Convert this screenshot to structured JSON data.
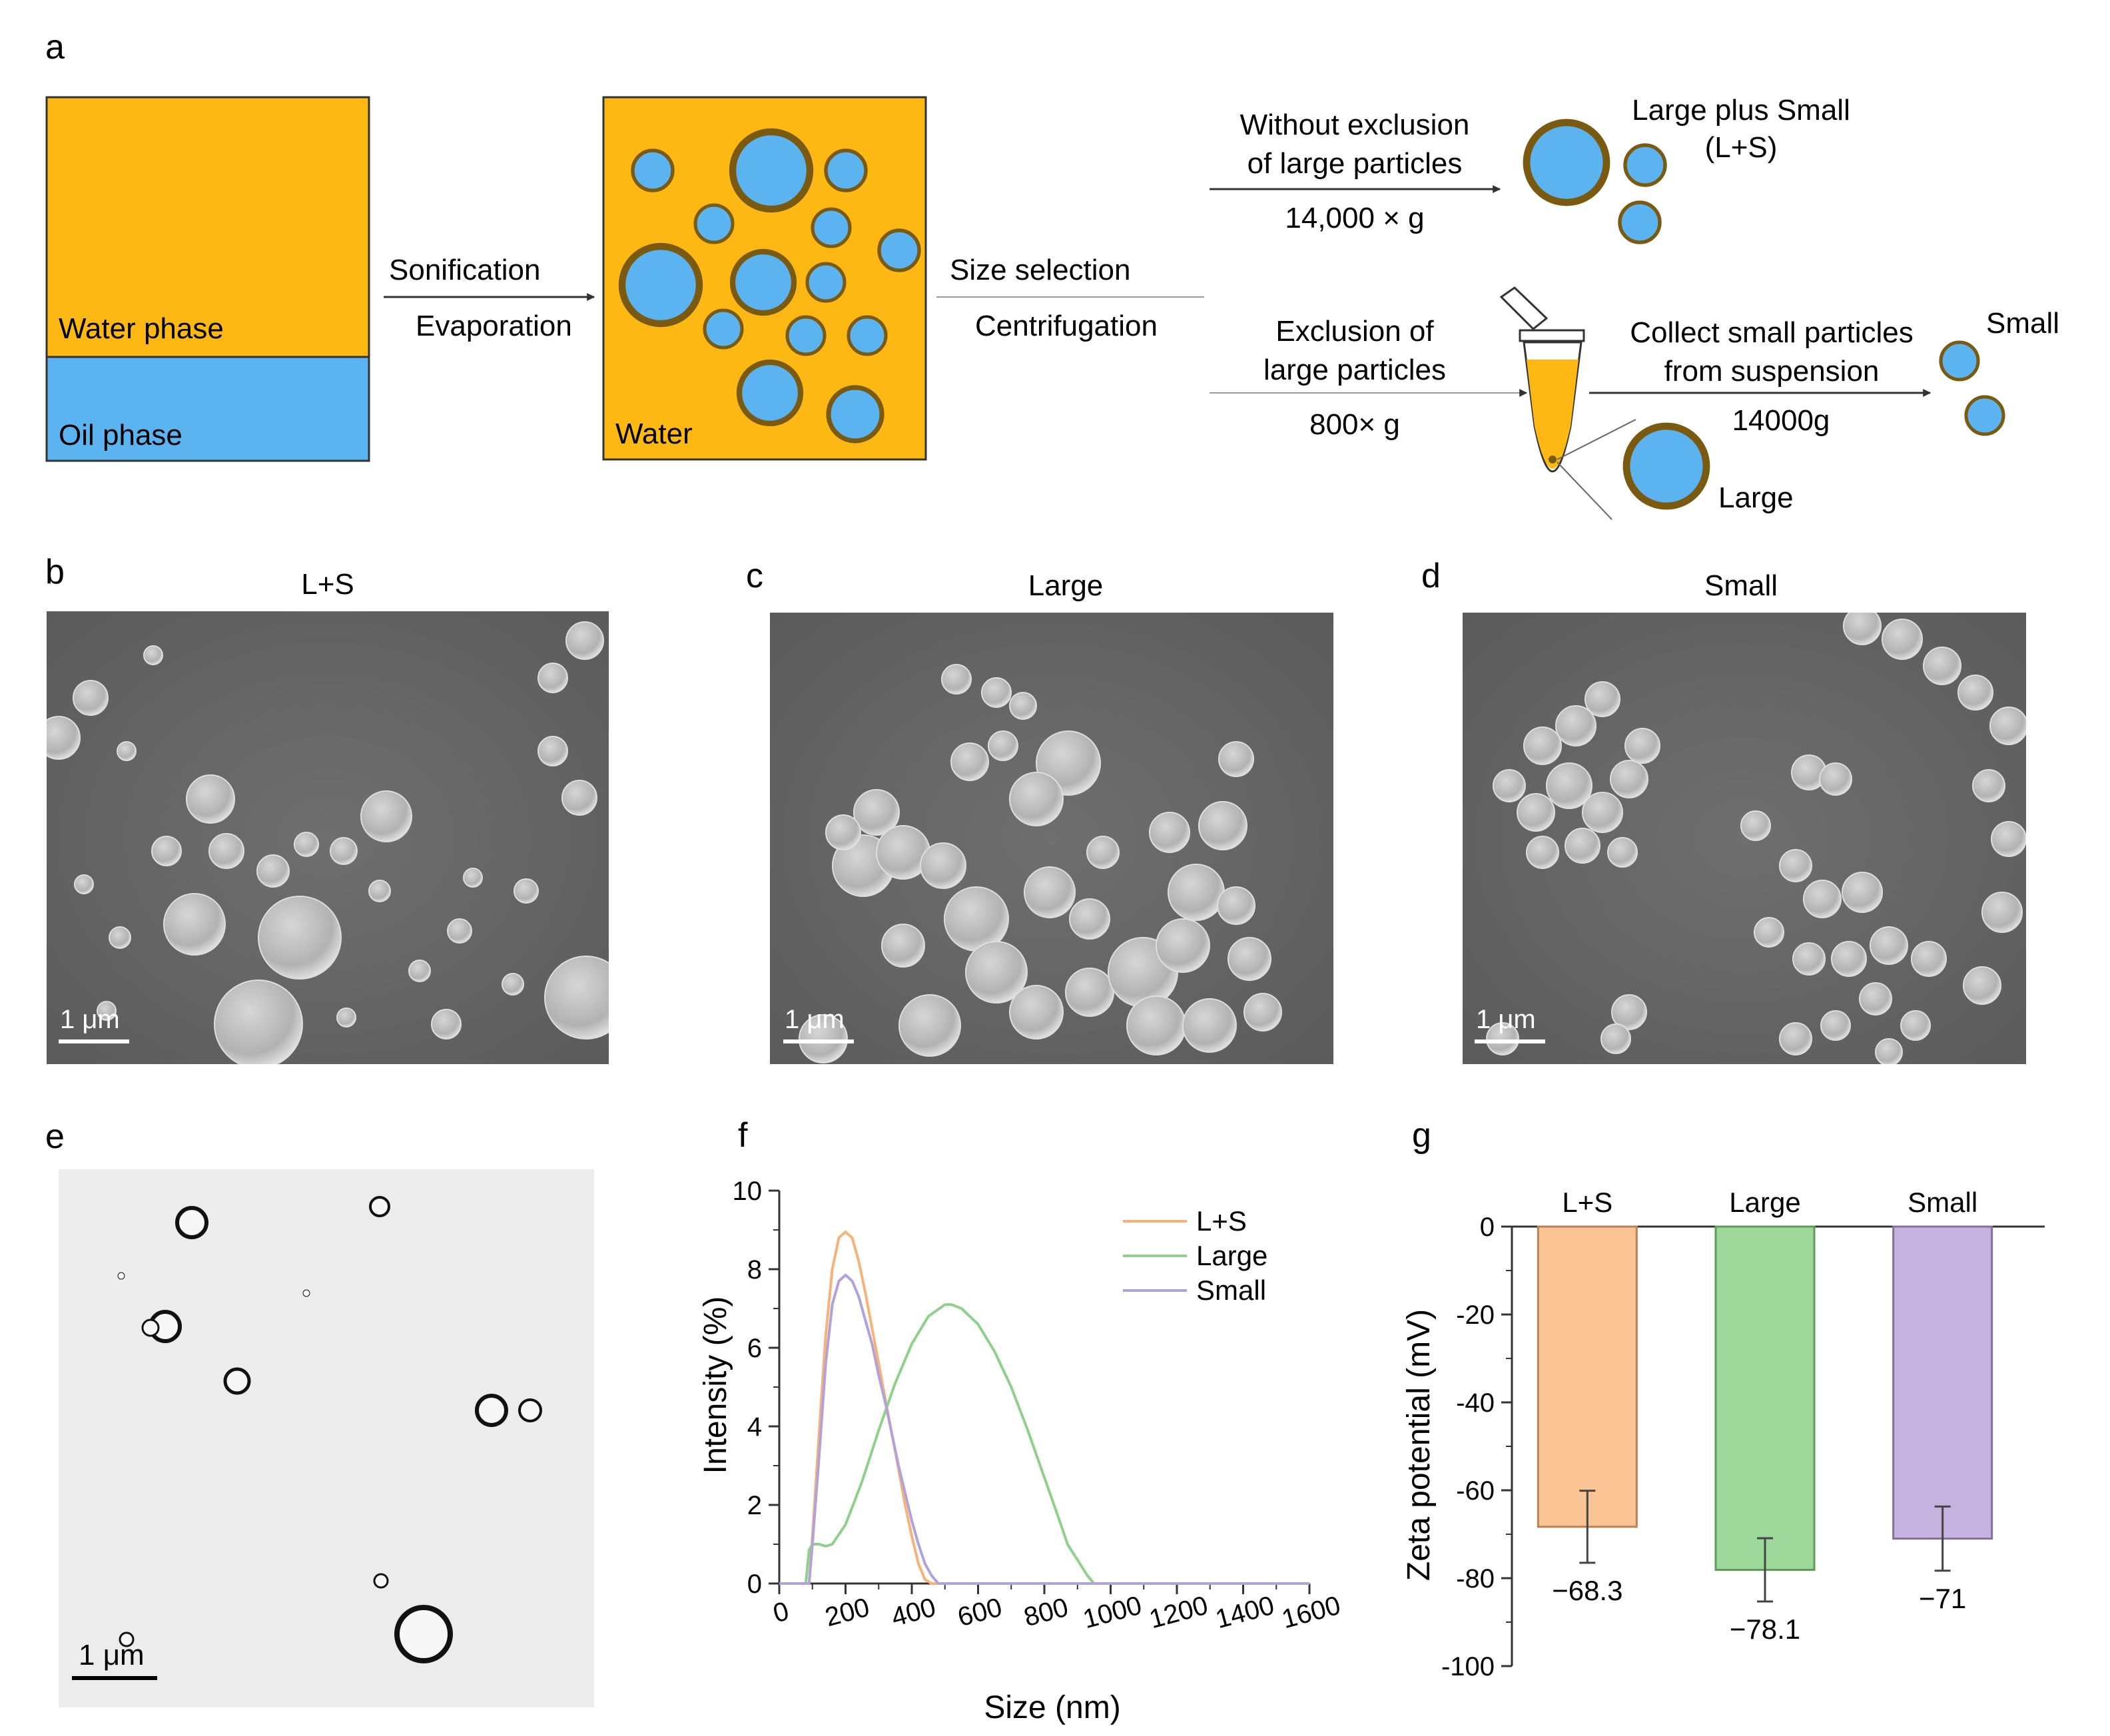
{
  "panel_letters": {
    "a": "a",
    "b": "b",
    "c": "c",
    "d": "d",
    "e": "e",
    "f": "f",
    "g": "g"
  },
  "schematic": {
    "water_phase": "Water phase",
    "oil_phase": "Oil phase",
    "water": "Water",
    "step1_top": "Sonification",
    "step1_bottom": "Evaporation",
    "step2_top": "Size selection",
    "step2_bottom": "Centrifugation",
    "route1_line1": "Without exclusion",
    "route1_line2": "of large particles",
    "route1_speed": "14,000 × g",
    "route1_result_line1": "Large plus Small",
    "route1_result_line2": "(L+S)",
    "route2_line1": "Exclusion of",
    "route2_line2": "large particles",
    "route2_speed": "800× g",
    "collect_line1": "Collect small particles",
    "collect_line2": "from suspension",
    "collect_speed": "14000g",
    "small_label": "Small",
    "large_label": "Large",
    "colors": {
      "water": "#FDB813",
      "oil": "#5BB3F0",
      "shell": "#7A5A10"
    }
  },
  "micrographs": {
    "b_title": "L+S",
    "c_title": "Large",
    "d_title": "Small",
    "scale_bar": "1 μm"
  },
  "chart_data": [
    {
      "type": "line",
      "panel": "f",
      "xlabel": "Size (nm)",
      "ylabel": "Intensity (%)",
      "xlim": [
        0,
        1600
      ],
      "ylim": [
        0,
        10
      ],
      "xticks": [
        "0",
        "200",
        "400",
        "600",
        "800",
        "1000",
        "1200",
        "1400",
        "1600"
      ],
      "yticks": [
        "0",
        "2",
        "4",
        "6",
        "8",
        "10"
      ],
      "legend_position": "top-right",
      "series": [
        {
          "name": "L+S",
          "color": "#F7B27A",
          "x": [
            0,
            90,
            100,
            120,
            140,
            160,
            180,
            200,
            220,
            240,
            260,
            280,
            300,
            320,
            340,
            360,
            380,
            400,
            420,
            440,
            460,
            1600
          ],
          "y": [
            0,
            0,
            1.2,
            3.8,
            6.3,
            8.0,
            8.8,
            8.95,
            8.8,
            8.2,
            7.4,
            6.5,
            5.6,
            4.7,
            3.8,
            2.9,
            2.0,
            1.2,
            0.5,
            0.1,
            0,
            0
          ]
        },
        {
          "name": "Large",
          "color": "#8FD08A",
          "x": [
            0,
            80,
            90,
            100,
            120,
            140,
            160,
            200,
            250,
            300,
            350,
            400,
            450,
            500,
            520,
            550,
            600,
            650,
            700,
            750,
            800,
            850,
            870,
            900,
            930,
            950,
            1600
          ],
          "y": [
            0,
            0,
            0.85,
            1.0,
            1.0,
            0.95,
            1.0,
            1.5,
            2.6,
            3.9,
            5.1,
            6.1,
            6.8,
            7.1,
            7.1,
            7.0,
            6.6,
            5.9,
            5.0,
            3.9,
            2.7,
            1.5,
            1.0,
            0.6,
            0.2,
            0,
            0
          ]
        },
        {
          "name": "Small",
          "color": "#B3A1DA",
          "x": [
            0,
            90,
            100,
            120,
            140,
            160,
            180,
            200,
            220,
            240,
            260,
            280,
            300,
            320,
            340,
            360,
            380,
            400,
            420,
            440,
            460,
            480,
            1600
          ],
          "y": [
            0,
            0,
            1.0,
            3.2,
            5.6,
            7.1,
            7.7,
            7.85,
            7.7,
            7.3,
            6.7,
            6.1,
            5.3,
            4.6,
            3.8,
            3.0,
            2.3,
            1.6,
            1.0,
            0.5,
            0.2,
            0,
            0
          ]
        }
      ]
    },
    {
      "type": "bar",
      "panel": "g",
      "ylabel": "Zeta potential (mV)",
      "ylim": [
        -100,
        0
      ],
      "yticks": [
        "0",
        "-20",
        "-40",
        "-60",
        "-80",
        "-100"
      ],
      "categories": [
        "L+S",
        "Large",
        "Small"
      ],
      "values": [
        -68.3,
        -78.1,
        -71
      ],
      "errors": [
        8.2,
        7.2,
        7.3
      ],
      "value_labels": [
        "−68.3",
        "−78.1",
        "−71"
      ],
      "colors": [
        "#FAC494",
        "#9DD89A",
        "#C6B2DE"
      ],
      "edge_colors": [
        "#B88258",
        "#5E9A5A",
        "#84709E"
      ]
    }
  ]
}
